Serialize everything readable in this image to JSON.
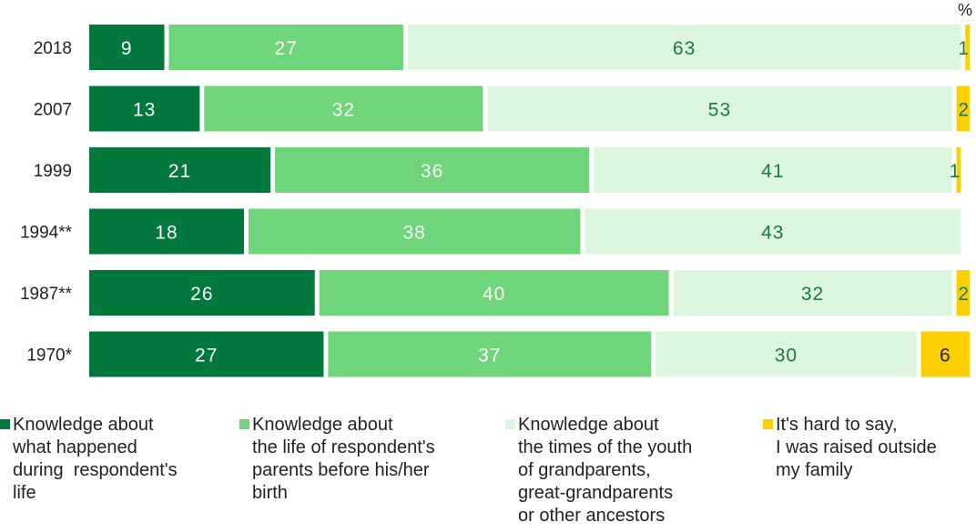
{
  "chart_data": {
    "type": "bar",
    "orientation": "horizontal",
    "stacked": true,
    "unit_label": "%",
    "categories": [
      "2018",
      "2007",
      "1999",
      "1994**",
      "1987**",
      "1970*"
    ],
    "series": [
      {
        "name": "Knowledge about\nwhat happened\nduring  respondent's\nlife",
        "color": "#00773b",
        "text_color": "#ffffff",
        "values": [
          9,
          13,
          21,
          18,
          26,
          27
        ]
      },
      {
        "name": "Knowledge about\nthe life of respondent's\nparents before his/her\nbirth",
        "color": "#6fd57a",
        "text_color": "#ffffff",
        "values": [
          27,
          32,
          36,
          38,
          40,
          37
        ]
      },
      {
        "name": "Knowledge about\nthe times of the youth\nof grandparents,\ngreat-grandparents\nor other ancestors",
        "color": "#dcf7de",
        "text_color": "#1a7a3c",
        "values": [
          63,
          53,
          41,
          43,
          32,
          30
        ]
      },
      {
        "name": "It's hard to say,\nI was raised outside\nmy family",
        "color": "#fbcf00",
        "text_color": "#222222",
        "values": [
          1,
          2,
          1,
          null,
          2,
          6
        ]
      }
    ],
    "xlim": [
      0,
      100
    ],
    "legend_position": "bottom"
  }
}
